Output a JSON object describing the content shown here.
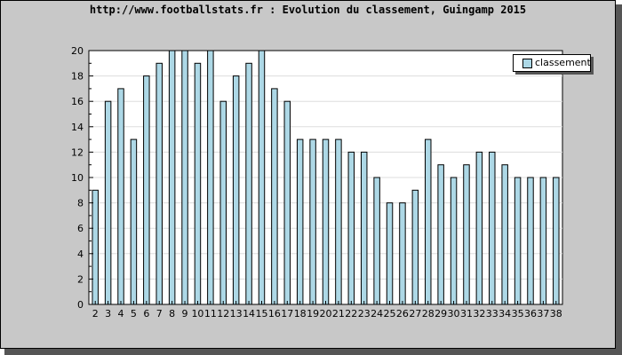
{
  "title": "http://www.footballstats.fr : Evolution du classement, Guingamp 2015",
  "colors": {
    "background": "#c8c8c8",
    "plot_background": "#ffffff",
    "bar_fill": "#add8e6",
    "bar_stroke": "#000000",
    "grid": "#dddddd"
  },
  "chart_data": {
    "type": "bar",
    "title": "http://www.footballstats.fr : Evolution du classement, Guingamp 2015",
    "xlabel": "",
    "ylabel": "",
    "categories": [
      "2",
      "3",
      "4",
      "5",
      "6",
      "7",
      "8",
      "9",
      "10",
      "11",
      "12",
      "13",
      "14",
      "15",
      "16",
      "17",
      "18",
      "19",
      "20",
      "21",
      "22",
      "23",
      "24",
      "25",
      "26",
      "27",
      "28",
      "29",
      "30",
      "31",
      "32",
      "33",
      "34",
      "35",
      "36",
      "37",
      "38"
    ],
    "series": [
      {
        "name": "classement",
        "values": [
          9,
          16,
          17,
          13,
          18,
          19,
          20,
          20,
          19,
          20,
          16,
          18,
          19,
          20,
          17,
          16,
          13,
          13,
          13,
          13,
          12,
          12,
          10,
          8,
          8,
          9,
          13,
          11,
          10,
          11,
          12,
          12,
          11,
          10,
          10,
          10,
          10
        ]
      }
    ],
    "ylim": [
      0,
      20
    ],
    "yticks": [
      0,
      2,
      4,
      6,
      8,
      10,
      12,
      14,
      16,
      18,
      20
    ],
    "grid": true,
    "legend_position": "top-right"
  }
}
